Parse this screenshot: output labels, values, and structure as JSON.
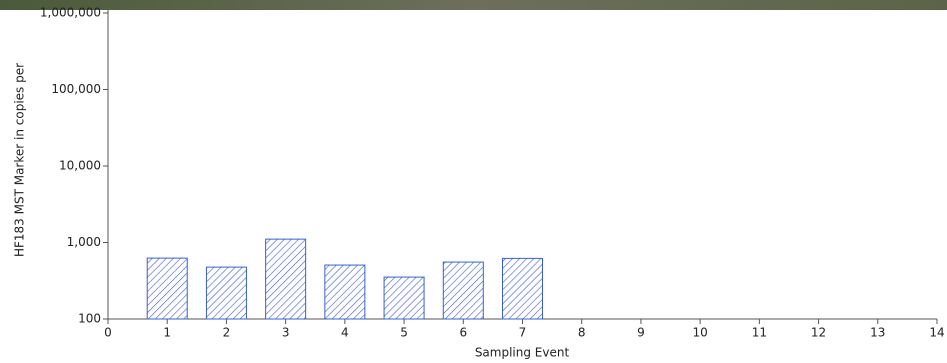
{
  "chart_data": {
    "type": "bar",
    "x": [
      1,
      2,
      3,
      4,
      5,
      6,
      7
    ],
    "values": [
      625,
      477,
      1107,
      507,
      353,
      555,
      620
    ],
    "color": "#3a5fcd",
    "xlabel": "Sampling Event",
    "ylabel": "HF183 MST Marker in copies per",
    "xlim": [
      0,
      14
    ],
    "xticks": [
      0,
      1,
      2,
      3,
      4,
      5,
      6,
      7,
      8,
      9,
      10,
      11,
      12,
      13,
      14
    ],
    "ylim": [
      100,
      1000000
    ],
    "yticks": [
      {
        "value": 100,
        "label": "100"
      },
      {
        "value": 1000,
        "label": "1,000"
      },
      {
        "value": 10000,
        "label": "10,000"
      },
      {
        "value": 100000,
        "label": "100,000"
      },
      {
        "value": 1000000,
        "label": "1,000,000"
      }
    ],
    "log_y": true
  }
}
